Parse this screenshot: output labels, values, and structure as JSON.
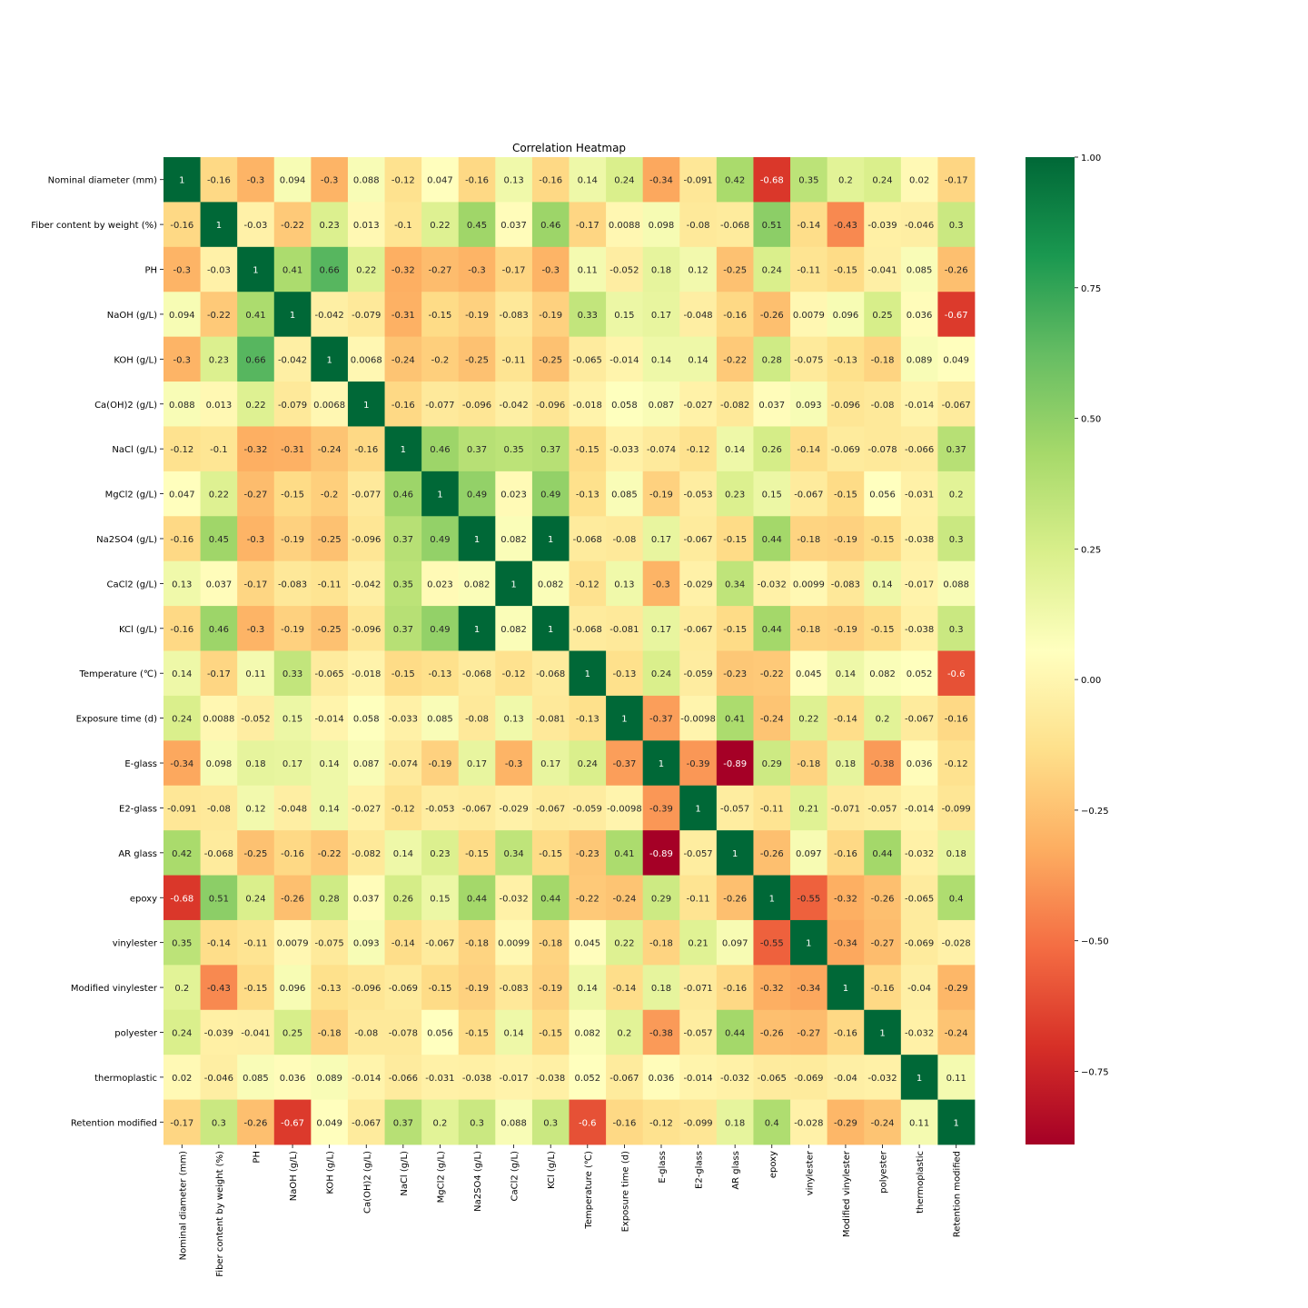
{
  "chart_data": {
    "type": "heatmap",
    "title": "Correlation Heatmap",
    "labels": [
      "Nominal diameter (mm)",
      "Fiber content by weight (%)",
      "PH",
      "NaOH (g/L)",
      "KOH (g/L)",
      "Ca(OH)2 (g/L)",
      "NaCl (g/L)",
      "MgCl2 (g/L)",
      "Na2SO4 (g/L)",
      "CaCl2 (g/L)",
      "KCl (g/L)",
      "Temperature (℃)",
      "Exposure time (d)",
      "E-glass",
      "E2-glass",
      "AR glass",
      "epoxy",
      "vinylester",
      "Modified vinylester",
      "polyester",
      "thermoplastic",
      "Retention modified"
    ],
    "matrix": [
      [
        "1",
        "-0.16",
        "-0.3",
        "0.094",
        "-0.3",
        "0.088",
        "-0.12",
        "0.047",
        "-0.16",
        "0.13",
        "-0.16",
        "0.14",
        "0.24",
        "-0.34",
        "-0.091",
        "0.42",
        "-0.68",
        "0.35",
        "0.2",
        "0.24",
        "0.02",
        "-0.17"
      ],
      [
        "-0.16",
        "1",
        "-0.03",
        "-0.22",
        "0.23",
        "0.013",
        "-0.1",
        "0.22",
        "0.45",
        "0.037",
        "0.46",
        "-0.17",
        "0.0088",
        "0.098",
        "-0.08",
        "-0.068",
        "0.51",
        "-0.14",
        "-0.43",
        "-0.039",
        "-0.046",
        "0.3"
      ],
      [
        "-0.3",
        "-0.03",
        "1",
        "0.41",
        "0.66",
        "0.22",
        "-0.32",
        "-0.27",
        "-0.3",
        "-0.17",
        "-0.3",
        "0.11",
        "-0.052",
        "0.18",
        "0.12",
        "-0.25",
        "0.24",
        "-0.11",
        "-0.15",
        "-0.041",
        "0.085",
        "-0.26"
      ],
      [
        "0.094",
        "-0.22",
        "0.41",
        "1",
        "-0.042",
        "-0.079",
        "-0.31",
        "-0.15",
        "-0.19",
        "-0.083",
        "-0.19",
        "0.33",
        "0.15",
        "0.17",
        "-0.048",
        "-0.16",
        "-0.26",
        "0.0079",
        "0.096",
        "0.25",
        "0.036",
        "-0.67"
      ],
      [
        "-0.3",
        "0.23",
        "0.66",
        "-0.042",
        "1",
        "0.0068",
        "-0.24",
        "-0.2",
        "-0.25",
        "-0.11",
        "-0.25",
        "-0.065",
        "-0.014",
        "0.14",
        "0.14",
        "-0.22",
        "0.28",
        "-0.075",
        "-0.13",
        "-0.18",
        "0.089",
        "0.049"
      ],
      [
        "0.088",
        "0.013",
        "0.22",
        "-0.079",
        "0.0068",
        "1",
        "-0.16",
        "-0.077",
        "-0.096",
        "-0.042",
        "-0.096",
        "-0.018",
        "0.058",
        "0.087",
        "-0.027",
        "-0.082",
        "0.037",
        "0.093",
        "-0.096",
        "-0.08",
        "-0.014",
        "-0.067"
      ],
      [
        "-0.12",
        "-0.1",
        "-0.32",
        "-0.31",
        "-0.24",
        "-0.16",
        "1",
        "0.46",
        "0.37",
        "0.35",
        "0.37",
        "-0.15",
        "-0.033",
        "-0.074",
        "-0.12",
        "0.14",
        "0.26",
        "-0.14",
        "-0.069",
        "-0.078",
        "-0.066",
        "0.37"
      ],
      [
        "0.047",
        "0.22",
        "-0.27",
        "-0.15",
        "-0.2",
        "-0.077",
        "0.46",
        "1",
        "0.49",
        "0.023",
        "0.49",
        "-0.13",
        "0.085",
        "-0.19",
        "-0.053",
        "0.23",
        "0.15",
        "-0.067",
        "-0.15",
        "0.056",
        "-0.031",
        "0.2"
      ],
      [
        "-0.16",
        "0.45",
        "-0.3",
        "-0.19",
        "-0.25",
        "-0.096",
        "0.37",
        "0.49",
        "1",
        "0.082",
        "1",
        "-0.068",
        "-0.08",
        "0.17",
        "-0.067",
        "-0.15",
        "0.44",
        "-0.18",
        "-0.19",
        "-0.15",
        "-0.038",
        "0.3"
      ],
      [
        "0.13",
        "0.037",
        "-0.17",
        "-0.083",
        "-0.11",
        "-0.042",
        "0.35",
        "0.023",
        "0.082",
        "1",
        "0.082",
        "-0.12",
        "0.13",
        "-0.3",
        "-0.029",
        "0.34",
        "-0.032",
        "0.0099",
        "-0.083",
        "0.14",
        "-0.017",
        "0.088"
      ],
      [
        "-0.16",
        "0.46",
        "-0.3",
        "-0.19",
        "-0.25",
        "-0.096",
        "0.37",
        "0.49",
        "1",
        "0.082",
        "1",
        "-0.068",
        "-0.081",
        "0.17",
        "-0.067",
        "-0.15",
        "0.44",
        "-0.18",
        "-0.19",
        "-0.15",
        "-0.038",
        "0.3"
      ],
      [
        "0.14",
        "-0.17",
        "0.11",
        "0.33",
        "-0.065",
        "-0.018",
        "-0.15",
        "-0.13",
        "-0.068",
        "-0.12",
        "-0.068",
        "1",
        "-0.13",
        "0.24",
        "-0.059",
        "-0.23",
        "-0.22",
        "0.045",
        "0.14",
        "0.082",
        "0.052",
        "-0.6"
      ],
      [
        "0.24",
        "0.0088",
        "-0.052",
        "0.15",
        "-0.014",
        "0.058",
        "-0.033",
        "0.085",
        "-0.08",
        "0.13",
        "-0.081",
        "-0.13",
        "1",
        "-0.37",
        "-0.0098",
        "0.41",
        "-0.24",
        "0.22",
        "-0.14",
        "0.2",
        "-0.067",
        "-0.16"
      ],
      [
        "-0.34",
        "0.098",
        "0.18",
        "0.17",
        "0.14",
        "0.087",
        "-0.074",
        "-0.19",
        "0.17",
        "-0.3",
        "0.17",
        "0.24",
        "-0.37",
        "1",
        "-0.39",
        "-0.89",
        "0.29",
        "-0.18",
        "0.18",
        "-0.38",
        "0.036",
        "-0.12"
      ],
      [
        "-0.091",
        "-0.08",
        "0.12",
        "-0.048",
        "0.14",
        "-0.027",
        "-0.12",
        "-0.053",
        "-0.067",
        "-0.029",
        "-0.067",
        "-0.059",
        "-0.0098",
        "-0.39",
        "1",
        "-0.057",
        "-0.11",
        "0.21",
        "-0.071",
        "-0.057",
        "-0.014",
        "-0.099"
      ],
      [
        "0.42",
        "-0.068",
        "-0.25",
        "-0.16",
        "-0.22",
        "-0.082",
        "0.14",
        "0.23",
        "-0.15",
        "0.34",
        "-0.15",
        "-0.23",
        "0.41",
        "-0.89",
        "-0.057",
        "1",
        "-0.26",
        "0.097",
        "-0.16",
        "0.44",
        "-0.032",
        "0.18"
      ],
      [
        "-0.68",
        "0.51",
        "0.24",
        "-0.26",
        "0.28",
        "0.037",
        "0.26",
        "0.15",
        "0.44",
        "-0.032",
        "0.44",
        "-0.22",
        "-0.24",
        "0.29",
        "-0.11",
        "-0.26",
        "1",
        "-0.55",
        "-0.32",
        "-0.26",
        "-0.065",
        "0.4"
      ],
      [
        "0.35",
        "-0.14",
        "-0.11",
        "0.0079",
        "-0.075",
        "0.093",
        "-0.14",
        "-0.067",
        "-0.18",
        "0.0099",
        "-0.18",
        "0.045",
        "0.22",
        "-0.18",
        "0.21",
        "0.097",
        "-0.55",
        "1",
        "-0.34",
        "-0.27",
        "-0.069",
        "-0.028"
      ],
      [
        "0.2",
        "-0.43",
        "-0.15",
        "0.096",
        "-0.13",
        "-0.096",
        "-0.069",
        "-0.15",
        "-0.19",
        "-0.083",
        "-0.19",
        "0.14",
        "-0.14",
        "0.18",
        "-0.071",
        "-0.16",
        "-0.32",
        "-0.34",
        "1",
        "-0.16",
        "-0.04",
        "-0.29"
      ],
      [
        "0.24",
        "-0.039",
        "-0.041",
        "0.25",
        "-0.18",
        "-0.08",
        "-0.078",
        "0.056",
        "-0.15",
        "0.14",
        "-0.15",
        "0.082",
        "0.2",
        "-0.38",
        "-0.057",
        "0.44",
        "-0.26",
        "-0.27",
        "-0.16",
        "1",
        "-0.032",
        "-0.24"
      ],
      [
        "0.02",
        "-0.046",
        "0.085",
        "0.036",
        "0.089",
        "-0.014",
        "-0.066",
        "-0.031",
        "-0.038",
        "-0.017",
        "-0.038",
        "0.052",
        "-0.067",
        "0.036",
        "-0.014",
        "-0.032",
        "-0.065",
        "-0.069",
        "-0.04",
        "-0.032",
        "1",
        "0.11"
      ],
      [
        "-0.17",
        "0.3",
        "-0.26",
        "-0.67",
        "0.049",
        "-0.067",
        "0.37",
        "0.2",
        "0.3",
        "0.088",
        "0.3",
        "-0.6",
        "-0.16",
        "-0.12",
        "-0.099",
        "0.18",
        "0.4",
        "-0.028",
        "-0.29",
        "-0.24",
        "0.11",
        "1"
      ]
    ],
    "colormap": "RdYlGn",
    "colorbar": {
      "vmin": -0.89,
      "vmax": 1.0,
      "ticks": [
        -0.75,
        -0.5,
        -0.25,
        0.0,
        0.25,
        0.5,
        0.75,
        1.0
      ],
      "tick_labels": [
        "−0.75",
        "−0.50",
        "−0.25",
        "0.00",
        "0.25",
        "0.50",
        "0.75",
        "1.00"
      ]
    },
    "grid": false
  }
}
